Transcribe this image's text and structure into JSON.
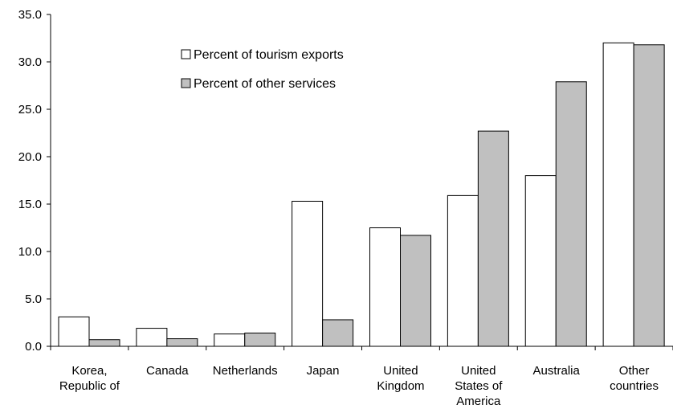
{
  "chart_data": {
    "type": "bar",
    "title": "",
    "xlabel": "",
    "ylabel": "",
    "ylim": [
      0,
      35
    ],
    "yticks": [
      "0.0",
      "5.0",
      "10.0",
      "15.0",
      "20.0",
      "25.0",
      "30.0",
      "35.0"
    ],
    "ytick_values": [
      0,
      5,
      10,
      15,
      20,
      25,
      30,
      35
    ],
    "grid": false,
    "legend_position": "top-center",
    "categories": [
      [
        "Korea,",
        "Republic of"
      ],
      [
        "Canada"
      ],
      [
        "Netherlands"
      ],
      [
        "Japan"
      ],
      [
        "United",
        "Kingdom"
      ],
      [
        "United",
        "States of",
        "America"
      ],
      [
        "Australia"
      ],
      [
        "Other",
        "countries"
      ]
    ],
    "series": [
      {
        "name": "Percent of tourism exports",
        "color": "#ffffff",
        "values": [
          3.1,
          1.9,
          1.3,
          15.3,
          12.5,
          15.9,
          18.0,
          32.0
        ]
      },
      {
        "name": "Percent of other services",
        "color": "#c0c0c0",
        "values": [
          0.7,
          0.8,
          1.4,
          2.8,
          11.7,
          22.7,
          27.9,
          31.8
        ]
      }
    ]
  }
}
